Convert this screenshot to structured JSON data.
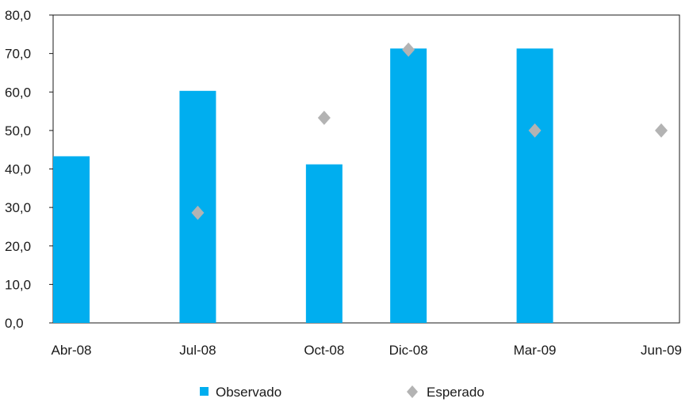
{
  "chart_data": {
    "type": "bar",
    "categories": [
      "Abr-08",
      "Jul-08",
      "Oct-08",
      "Dic-08",
      "Mar-09",
      "Jun-09"
    ],
    "x_positions_months": [
      0,
      3,
      6,
      8,
      11,
      14
    ],
    "series": [
      {
        "name": "Observado",
        "kind": "bar",
        "color": "#00aeef",
        "values": [
          43.3,
          60.3,
          41.2,
          71.3,
          71.3,
          null
        ]
      },
      {
        "name": "Esperado",
        "kind": "diamond",
        "color": "#b3b3b3",
        "values": [
          null,
          28.6,
          53.3,
          71.0,
          50.0,
          50.0
        ]
      }
    ],
    "ylim": [
      0,
      80
    ],
    "yticks": [
      "0,0",
      "10,0",
      "20,0",
      "30,0",
      "40,0",
      "50,0",
      "60,0",
      "70,0",
      "80,0"
    ],
    "xlabel": "",
    "ylabel": "",
    "title": "",
    "grid": false,
    "legend_position": "bottom-center"
  }
}
